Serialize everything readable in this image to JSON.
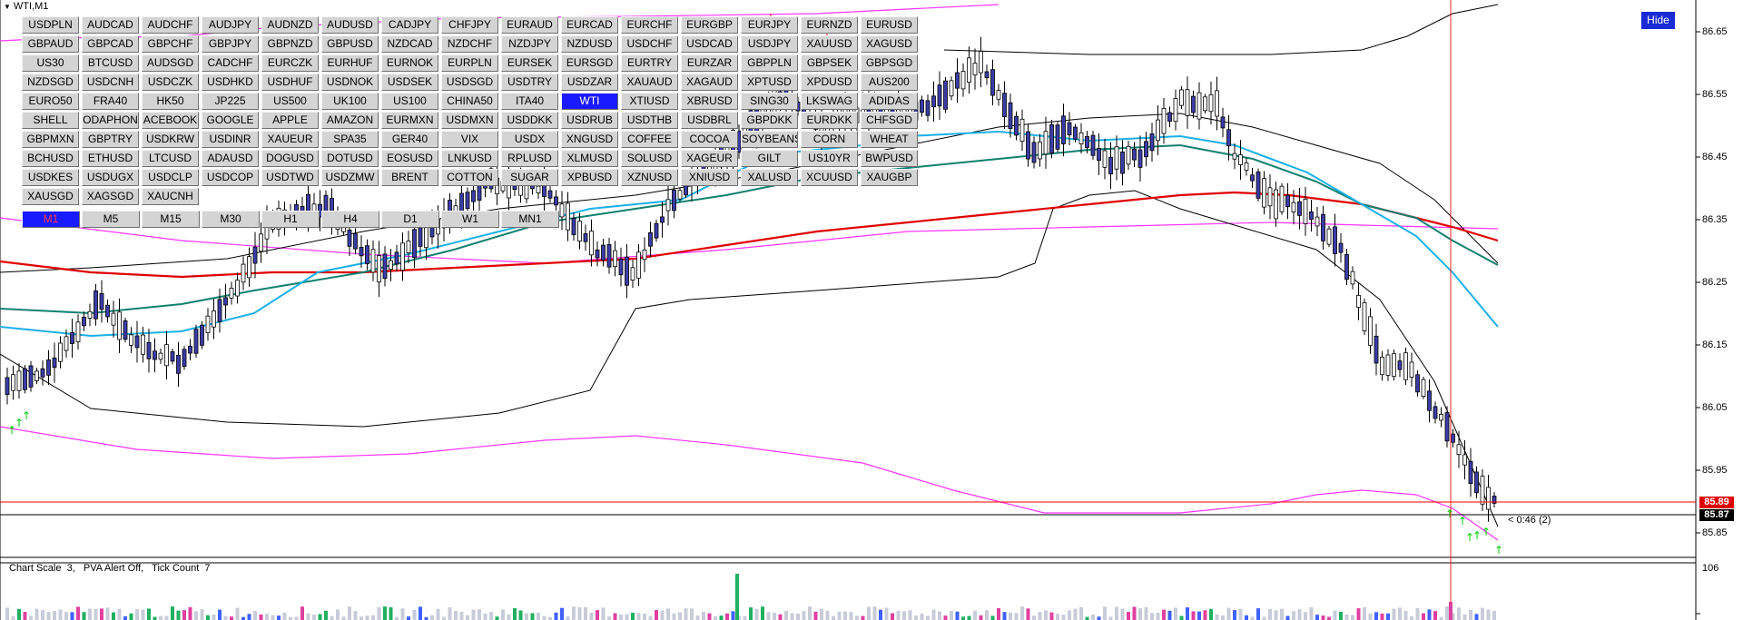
{
  "chart": {
    "title": "WTI,M1",
    "hide_label": "Hide",
    "price_axis": [
      "86.65",
      "86.55",
      "86.45",
      "86.35",
      "86.25",
      "86.15",
      "86.05",
      "85.95",
      "85.85"
    ],
    "bid_tag": "85.89",
    "last_tag": "85.87",
    "countdown": "< 0:46 (2)",
    "colors": {
      "bid": "#ff0000",
      "last": "#000000",
      "ma_red": "#e00000",
      "ma_teal": "#108070",
      "ma_blue": "#1ab0e8",
      "envelope": "#ff33ff",
      "bands": "#000000",
      "candle": "#3c3ca8"
    }
  },
  "symbols": [
    [
      "USDPLN",
      "AUDCAD",
      "AUDCHF",
      "AUDJPY",
      "AUDNZD",
      "AUDUSD",
      "CADJPY",
      "CHFJPY",
      "EURAUD",
      "EURCAD",
      "EURCHF",
      "EURGBP",
      "EURJPY",
      "EURNZD",
      "EURUSD"
    ],
    [
      "GBPAUD",
      "GBPCAD",
      "GBPCHF",
      "GBPJPY",
      "GBPNZD",
      "GBPUSD",
      "NZDCAD",
      "NZDCHF",
      "NZDJPY",
      "NZDUSD",
      "USDCHF",
      "USDCAD",
      "USDJPY",
      "XAUUSD",
      "XAGUSD"
    ],
    [
      "US30",
      "BTCUSD",
      "AUDSGD",
      "CADCHF",
      "EURCZK",
      "EURHUF",
      "EURNOK",
      "EURPLN",
      "EURSEK",
      "EURSGD",
      "EURTRY",
      "EURZAR",
      "GBPPLN",
      "GBPSEK",
      "GBPSGD"
    ],
    [
      "NZDSGD",
      "USDCNH",
      "USDCZK",
      "USDHKD",
      "USDHUF",
      "USDNOK",
      "USDSEK",
      "USDSGD",
      "USDTRY",
      "USDZAR",
      "XAUAUD",
      "XAGAUD",
      "XPTUSD",
      "XPDUSD",
      "AUS200"
    ],
    [
      "EURO50",
      "FRA40",
      "HK50",
      "JP225",
      "US500",
      "UK100",
      "US100",
      "CHINA50",
      "ITA40",
      "WTI",
      "XTIUSD",
      "XBRUSD",
      "SING30",
      "LKSWAG",
      "ADIDAS"
    ],
    [
      "SHELL",
      "ODAPHON",
      "ACEBOOK",
      "GOOGLE",
      "APPLE",
      "AMAZON",
      "EURMXN",
      "USDMXN",
      "USDDKK",
      "USDRUB",
      "USDTHB",
      "USDBRL",
      "GBPDKK",
      "EURDKK",
      "CHFSGD"
    ],
    [
      "GBPMXN",
      "GBPTRY",
      "USDKRW",
      "USDINR",
      "XAUEUR",
      "SPA35",
      "GER40",
      "VIX",
      "USDX",
      "XNGUSD",
      "COFFEE",
      "COCOA",
      "SOYBEANS",
      "CORN",
      "WHEAT"
    ],
    [
      "BCHUSD",
      "ETHUSD",
      "LTCUSD",
      "ADAUSD",
      "DOGUSD",
      "DOTUSD",
      "EOSUSD",
      "LNKUSD",
      "RPLUSD",
      "XLMUSD",
      "SOLUSD",
      "XAGEUR",
      "GILT",
      "US10YR",
      "BWPUSD"
    ],
    [
      "USDKES",
      "USDUGX",
      "USDCLP",
      "USDCOP",
      "USDTWD",
      "USDZMW",
      "BRENT",
      "COTTON",
      "SUGAR",
      "XPBUSD",
      "XZNUSD",
      "XNIUSD",
      "XALUSD",
      "XCUUSD",
      "XAUGBP"
    ],
    [
      "XAUSGD",
      "XAGSGD",
      "XAUCNH"
    ]
  ],
  "active_symbol": "WTI",
  "timeframes": [
    "M1",
    "M5",
    "M15",
    "M30",
    "H1",
    "H4",
    "D1",
    "W1",
    "MN1"
  ],
  "active_timeframe": "M1",
  "indicator": {
    "label": "Chart Scale  3,   PVA Alert Off,   Tick Count  7",
    "max_value": "106"
  }
}
